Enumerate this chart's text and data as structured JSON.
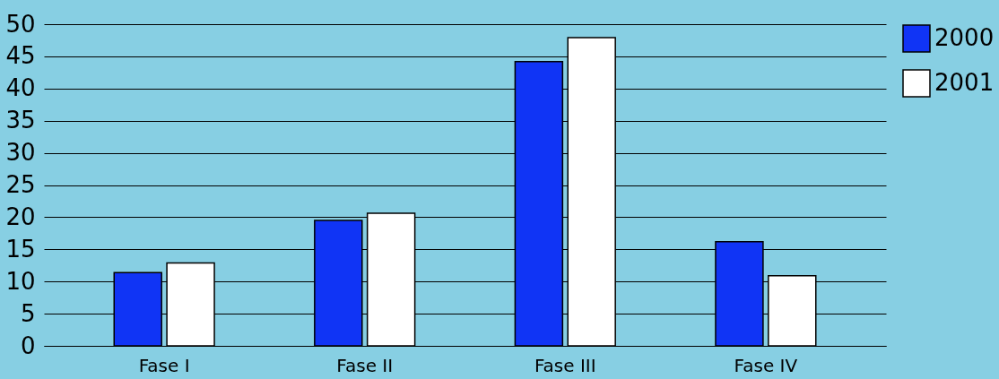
{
  "chart_data": {
    "type": "bar",
    "categories": [
      "Fase I",
      "Fase II",
      "Fase III",
      "Fase IV"
    ],
    "series": [
      {
        "name": "2000",
        "color": "#1034f5",
        "values": [
          11.4,
          19.5,
          44.2,
          16.2
        ]
      },
      {
        "name": "2001",
        "color": "#ffffff",
        "values": [
          12.9,
          20.6,
          47.9,
          10.9
        ]
      }
    ],
    "ylim": [
      0,
      50
    ],
    "yticks": [
      0,
      5,
      10,
      15,
      20,
      25,
      30,
      35,
      40,
      45,
      50
    ],
    "grid": "y",
    "legend": "right"
  }
}
